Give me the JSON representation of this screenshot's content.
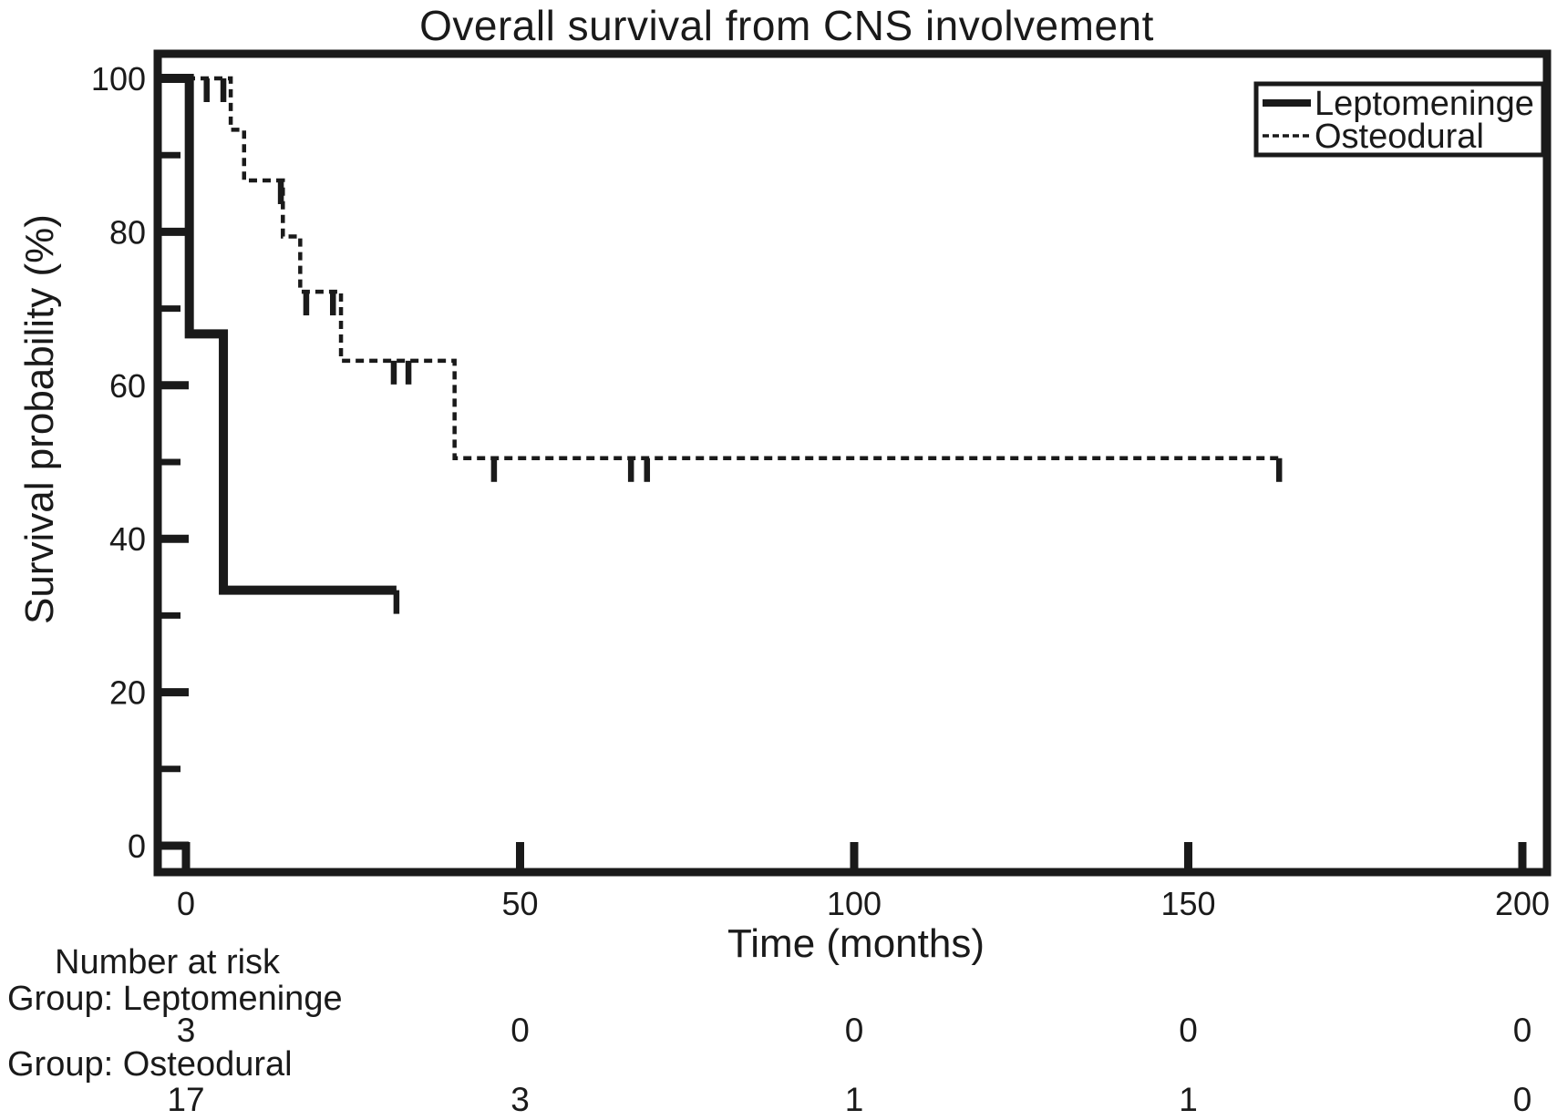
{
  "figure": {
    "title": "Overall survival from CNS involvement",
    "colors": {
      "ink": "#1a1a1a",
      "background": "#ffffff"
    }
  },
  "chart_data": {
    "type": "line",
    "subtype": "kaplan-meier-step",
    "title": "Overall survival from CNS involvement",
    "xlabel": "Time (months)",
    "ylabel": "Survival probability (%)",
    "xlim": [
      0,
      200
    ],
    "ylim": [
      0,
      100
    ],
    "x_ticks": [
      0,
      50,
      100,
      150,
      200
    ],
    "y_ticks": [
      0,
      20,
      40,
      60,
      80,
      100
    ],
    "y_minor_ticks": [
      10,
      30,
      50,
      70,
      90
    ],
    "grid": false,
    "legend_position": "top-right",
    "series": [
      {
        "name": "Leptomeninge",
        "style": "solid",
        "steps": [
          [
            0,
            100
          ],
          [
            0.5,
            100
          ],
          [
            0.5,
            66.7
          ],
          [
            5.6,
            66.7
          ],
          [
            5.6,
            33.3
          ],
          [
            31.5,
            33.3
          ]
        ],
        "censor_marks": [
          [
            31.5,
            33.3
          ]
        ]
      },
      {
        "name": "Osteodural",
        "style": "dashed",
        "steps": [
          [
            0,
            100
          ],
          [
            6.7,
            100
          ],
          [
            6.7,
            93.3
          ],
          [
            8.7,
            93.3
          ],
          [
            8.7,
            86.7
          ],
          [
            14.5,
            86.7
          ],
          [
            14.5,
            79.4
          ],
          [
            17.1,
            79.4
          ],
          [
            17.1,
            72.2
          ],
          [
            23.2,
            72.2
          ],
          [
            23.2,
            63.2
          ],
          [
            40.2,
            63.2
          ],
          [
            40.2,
            50.5
          ],
          [
            163.6,
            50.5
          ]
        ],
        "censor_marks": [
          [
            3.1,
            100
          ],
          [
            5.6,
            100
          ],
          [
            14.2,
            86.7
          ],
          [
            18,
            72.2
          ],
          [
            22,
            72.2
          ],
          [
            31.1,
            63.2
          ],
          [
            33.3,
            63.2
          ],
          [
            46.1,
            50.5
          ],
          [
            66.6,
            50.5
          ],
          [
            69,
            50.5
          ],
          [
            163.6,
            50.5
          ]
        ]
      }
    ]
  },
  "at_risk": {
    "header": "Number at risk",
    "time_points": [
      0,
      50,
      100,
      150,
      200
    ],
    "groups": [
      {
        "label": "Group: Leptomeninge",
        "counts": [
          "3",
          "0",
          "0",
          "0",
          "0"
        ]
      },
      {
        "label": "Group: Osteodural",
        "counts": [
          "17",
          "3",
          "1",
          "1",
          "0"
        ]
      }
    ]
  }
}
